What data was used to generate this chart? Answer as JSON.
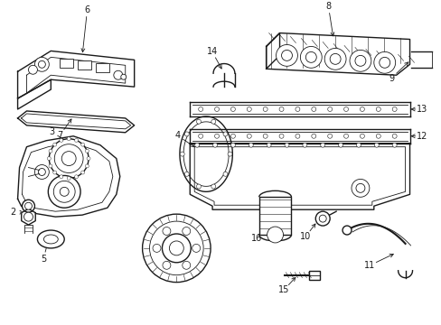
{
  "background_color": "#ffffff",
  "line_color": "#1a1a1a",
  "fig_width": 4.89,
  "fig_height": 3.6,
  "dpi": 100,
  "label_fontsize": 7.0
}
